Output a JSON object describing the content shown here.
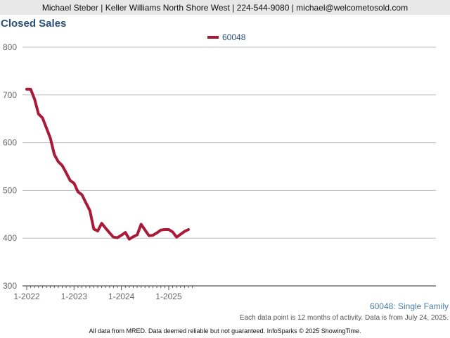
{
  "header": {
    "text": "Michael Steber | Keller Williams North Shore West | 224-544-9080 | michael@welcometosold.com"
  },
  "chart_data": {
    "type": "line",
    "title": "Closed Sales",
    "xlabel": "",
    "ylabel": "",
    "ylim": [
      300,
      800
    ],
    "yticks": [
      300,
      400,
      500,
      600,
      700,
      800
    ],
    "xticks": [
      "1-2022",
      "1-2023",
      "1-2024",
      "1-2025"
    ],
    "grid": true,
    "legend_position": "top",
    "series": [
      {
        "name": "60048",
        "color": "#a81a38",
        "x": [
          "2022-01",
          "2022-02",
          "2022-03",
          "2022-04",
          "2022-05",
          "2022-06",
          "2022-07",
          "2022-08",
          "2022-09",
          "2022-10",
          "2022-11",
          "2022-12",
          "2023-01",
          "2023-02",
          "2023-03",
          "2023-04",
          "2023-05",
          "2023-06",
          "2023-07",
          "2023-08",
          "2023-09",
          "2023-10",
          "2023-11",
          "2023-12",
          "2024-01",
          "2024-02",
          "2024-03",
          "2024-04",
          "2024-05",
          "2024-06",
          "2024-07",
          "2024-08",
          "2024-09",
          "2024-10",
          "2024-11",
          "2024-12",
          "2025-01",
          "2025-02",
          "2025-03",
          "2025-04",
          "2025-05",
          "2025-06"
        ],
        "values": [
          712,
          712,
          691,
          660,
          652,
          631,
          609,
          575,
          560,
          552,
          537,
          521,
          515,
          497,
          491,
          474,
          458,
          419,
          415,
          431,
          421,
          411,
          402,
          401,
          406,
          412,
          398,
          403,
          407,
          429,
          417,
          405,
          406,
          411,
          417,
          418,
          418,
          413,
          402,
          408,
          414,
          418
        ]
      }
    ]
  },
  "series_note": "60048: Single Family",
  "footnote": "Each data point is 12 months of activity. Data is from July 24, 2025.",
  "footer": "All data from MRED. Data deemed reliable but not guaranteed. InfoSparks © 2025 ShowingTime."
}
